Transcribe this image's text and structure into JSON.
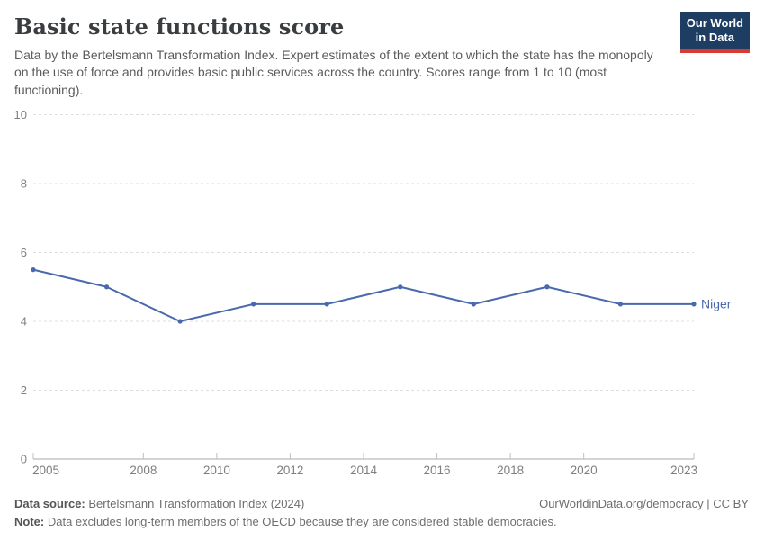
{
  "header": {
    "title": "Basic state functions score",
    "subtitle": "Data by the Bertelsmann Transformation Index. Expert estimates of the extent to which the state has the monopoly on the use of force and provides basic public services across the country. Scores range from 1 to 10 (most functioning).",
    "logo": {
      "line1": "Our World",
      "line2": "in Data"
    }
  },
  "chart_data": {
    "type": "line",
    "title": "Basic state functions score",
    "x": [
      2005,
      2007,
      2009,
      2011,
      2013,
      2015,
      2017,
      2019,
      2021,
      2023
    ],
    "series": [
      {
        "name": "Niger",
        "color": "#4a69ad",
        "values": [
          5.5,
          5,
          4,
          4.5,
          4.5,
          5,
          4.5,
          5,
          4.5,
          4.5
        ]
      }
    ],
    "xlim": [
      2005,
      2023
    ],
    "ylim": [
      0,
      10
    ],
    "x_tick_labels": [
      "2005",
      "2008",
      "2010",
      "2012",
      "2014",
      "2016",
      "2018",
      "2020",
      "2023"
    ],
    "y_tick_labels": [
      "0",
      "2",
      "4",
      "6",
      "8",
      "10"
    ],
    "grid": "horizontal-dashed",
    "legend_position": "line-end"
  },
  "footer": {
    "datasource_label": "Data source:",
    "datasource_value": "Bertelsmann Transformation Index (2024)",
    "note_label": "Note:",
    "note_value": "Data excludes long-term members of the OECD because they are considered stable democracies.",
    "link": "OurWorldinData.org/democracy",
    "separator": " | ",
    "license": "CC BY"
  },
  "colors": {
    "line": "#4a69ad",
    "logo_bg": "#1d3d63",
    "logo_stripe": "#d93a34",
    "grid": "#dedede",
    "axis": "#a8a8a8",
    "tick": "#c0c0c0",
    "tick_label": "#7f7f7f"
  }
}
